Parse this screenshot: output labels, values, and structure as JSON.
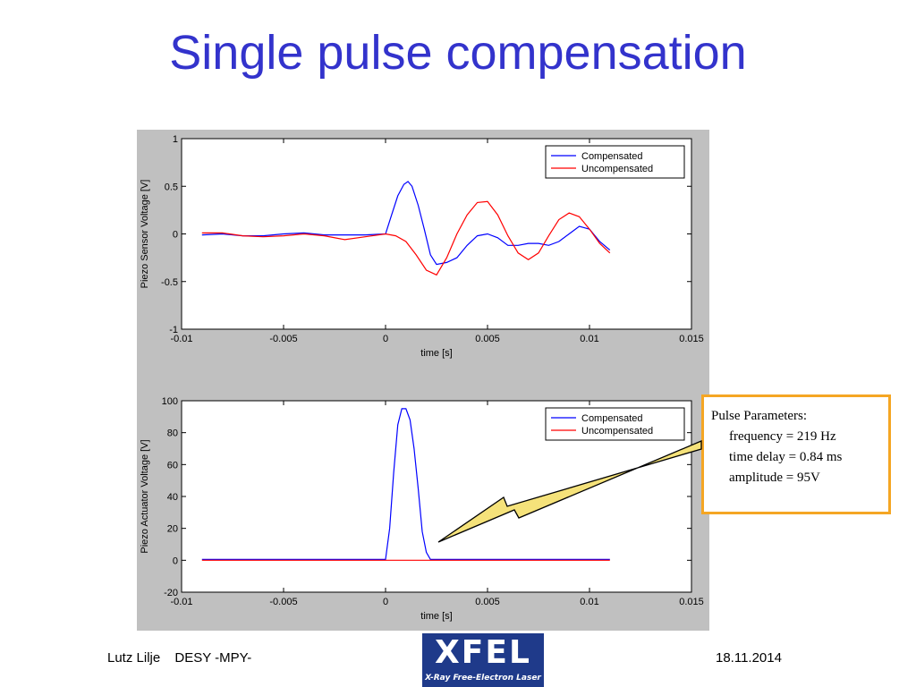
{
  "slide": {
    "title": "Single pulse compensation",
    "footer": {
      "author": "Lutz Lilje",
      "group": "DESY -MPY-",
      "date": "18.11.2014"
    },
    "logo": {
      "name": "XFEL",
      "subtitle": "X-Ray Free-Electron Laser"
    }
  },
  "callout": {
    "heading": "Pulse Parameters:",
    "lines": [
      "frequency = 219 Hz",
      "time delay = 0.84 ms",
      "amplitude = 95V"
    ]
  },
  "colors": {
    "compensated": "#0000ff",
    "uncompensated": "#ff0000",
    "accent": "#3333cc",
    "callout_border": "#f5a623",
    "arrow_fill": "#f5e27a"
  },
  "chart_data": [
    {
      "type": "line",
      "xlabel": "time [s]",
      "ylabel": "Piezo Sensor Voltage [V]",
      "xlim": [
        -0.01,
        0.015
      ],
      "ylim": [
        -1,
        1
      ],
      "xticks": [
        -0.01,
        -0.005,
        0,
        0.005,
        0.01,
        0.015
      ],
      "xtick_labels": [
        "-0.01",
        "-0.005",
        "0",
        "0.005",
        "0.01",
        "0.015"
      ],
      "yticks": [
        -1,
        -0.5,
        0,
        0.5,
        1
      ],
      "ytick_labels": [
        "-1",
        "-0.5",
        "0",
        "0.5",
        "1"
      ],
      "legend": "top-right",
      "series": [
        {
          "name": "Compensated",
          "color": "#0000ff",
          "x": [
            -0.009,
            -0.008,
            -0.007,
            -0.006,
            -0.005,
            -0.004,
            -0.003,
            -0.002,
            -0.001,
            0,
            0.0003,
            0.0006,
            0.0009,
            0.0011,
            0.0013,
            0.0016,
            0.0019,
            0.0022,
            0.0025,
            0.003,
            0.0035,
            0.004,
            0.0045,
            0.005,
            0.0055,
            0.006,
            0.0065,
            0.007,
            0.0075,
            0.008,
            0.0085,
            0.009,
            0.0095,
            0.01,
            0.0105,
            0.011
          ],
          "y": [
            -0.01,
            0.0,
            -0.02,
            -0.02,
            0.0,
            0.01,
            -0.01,
            -0.01,
            -0.01,
            0.0,
            0.2,
            0.4,
            0.52,
            0.55,
            0.5,
            0.3,
            0.05,
            -0.22,
            -0.32,
            -0.3,
            -0.25,
            -0.12,
            -0.02,
            0.0,
            -0.04,
            -0.12,
            -0.12,
            -0.1,
            -0.1,
            -0.12,
            -0.08,
            0.0,
            0.08,
            0.05,
            -0.08,
            -0.17
          ]
        },
        {
          "name": "Uncompensated",
          "color": "#ff0000",
          "x": [
            -0.009,
            -0.008,
            -0.007,
            -0.006,
            -0.005,
            -0.004,
            -0.003,
            -0.002,
            -0.001,
            0,
            0.0005,
            0.001,
            0.0015,
            0.002,
            0.0025,
            0.003,
            0.0035,
            0.004,
            0.0045,
            0.005,
            0.0055,
            0.006,
            0.0065,
            0.007,
            0.0075,
            0.008,
            0.0085,
            0.009,
            0.0095,
            0.01,
            0.0105,
            0.011
          ],
          "y": [
            0.01,
            0.01,
            -0.02,
            -0.03,
            -0.02,
            0.0,
            -0.02,
            -0.06,
            -0.03,
            0.0,
            -0.02,
            -0.08,
            -0.22,
            -0.38,
            -0.43,
            -0.25,
            0.0,
            0.2,
            0.33,
            0.34,
            0.2,
            -0.02,
            -0.2,
            -0.27,
            -0.2,
            -0.02,
            0.15,
            0.22,
            0.18,
            0.05,
            -0.1,
            -0.2
          ]
        }
      ]
    },
    {
      "type": "line",
      "xlabel": "time [s]",
      "ylabel": "Piezo Actuator Voltage [V]",
      "xlim": [
        -0.01,
        0.015
      ],
      "ylim": [
        -20,
        100
      ],
      "xticks": [
        -0.01,
        -0.005,
        0,
        0.005,
        0.01,
        0.015
      ],
      "xtick_labels": [
        "-0.01",
        "-0.005",
        "0",
        "0.005",
        "0.01",
        "0.015"
      ],
      "yticks": [
        -20,
        0,
        20,
        40,
        60,
        80,
        100
      ],
      "ytick_labels": [
        "-20",
        "0",
        "20",
        "40",
        "60",
        "80",
        "100"
      ],
      "legend": "top-right",
      "series": [
        {
          "name": "Compensated",
          "color": "#0000ff",
          "x": [
            -0.009,
            -0.003,
            0,
            0.0002,
            0.0004,
            0.0006,
            0.0008,
            0.001,
            0.0012,
            0.0014,
            0.0016,
            0.0018,
            0.002,
            0.0022,
            0.005,
            0.008,
            0.011
          ],
          "y": [
            0.5,
            0.5,
            0.5,
            20,
            55,
            85,
            95,
            95,
            88,
            70,
            45,
            18,
            5,
            0.5,
            0.5,
            0.5,
            0.5
          ]
        },
        {
          "name": "Uncompensated",
          "color": "#ff0000",
          "x": [
            -0.009,
            0.011
          ],
          "y": [
            0,
            0
          ]
        }
      ]
    }
  ]
}
